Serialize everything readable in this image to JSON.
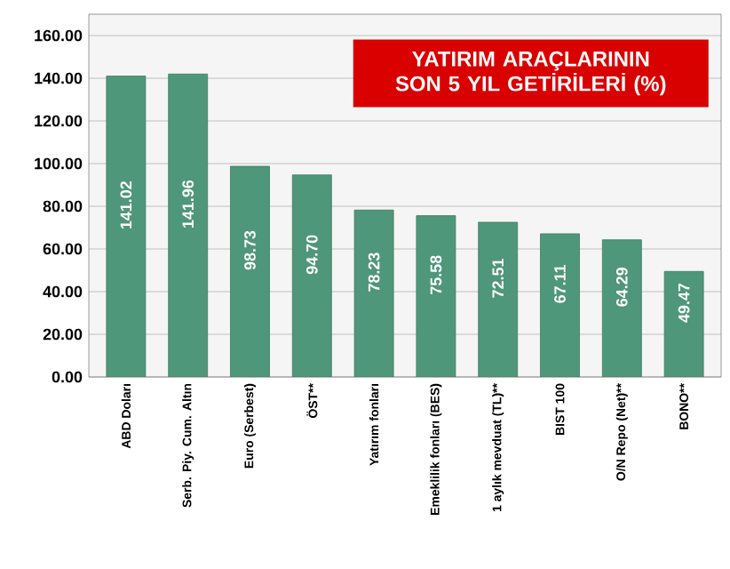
{
  "chart_data": {
    "type": "bar",
    "title": "YATIRIM ARAÇLARININ SON 5 YIL GETİRİLERİ (%)",
    "categories": [
      "ABD Doları",
      "Serb. Piy. Cum. Altın",
      "Euro (Serbest)",
      "ÖST**",
      "Yatırım fonları",
      "Emeklilik fonları (BES)",
      "1 aylık mevduat (TL)**",
      "BIST 100",
      "O/N Repo (Net)**",
      "BONO**"
    ],
    "values": [
      141.02,
      141.96,
      98.73,
      94.7,
      78.23,
      75.58,
      72.51,
      67.11,
      64.29,
      49.47
    ],
    "value_labels": [
      "141.02",
      "141.96",
      "98.73",
      "94.70",
      "78.23",
      "75.58",
      "72.51",
      "67.11",
      "64.29",
      "49.47"
    ],
    "color": "#4f977a",
    "ylim": [
      0,
      170
    ],
    "yticks": [
      {
        "value": 0,
        "label": "0.00"
      },
      {
        "value": 20,
        "label": "20.00"
      },
      {
        "value": 40,
        "label": "40.00"
      },
      {
        "value": 60,
        "label": "60.00"
      },
      {
        "value": 80,
        "label": "80.00"
      },
      {
        "value": 100,
        "label": "100.00"
      },
      {
        "value": 120,
        "label": "120.00"
      },
      {
        "value": 140,
        "label": "140.00"
      },
      {
        "value": 160,
        "label": "160.00"
      }
    ],
    "grid": "y"
  }
}
